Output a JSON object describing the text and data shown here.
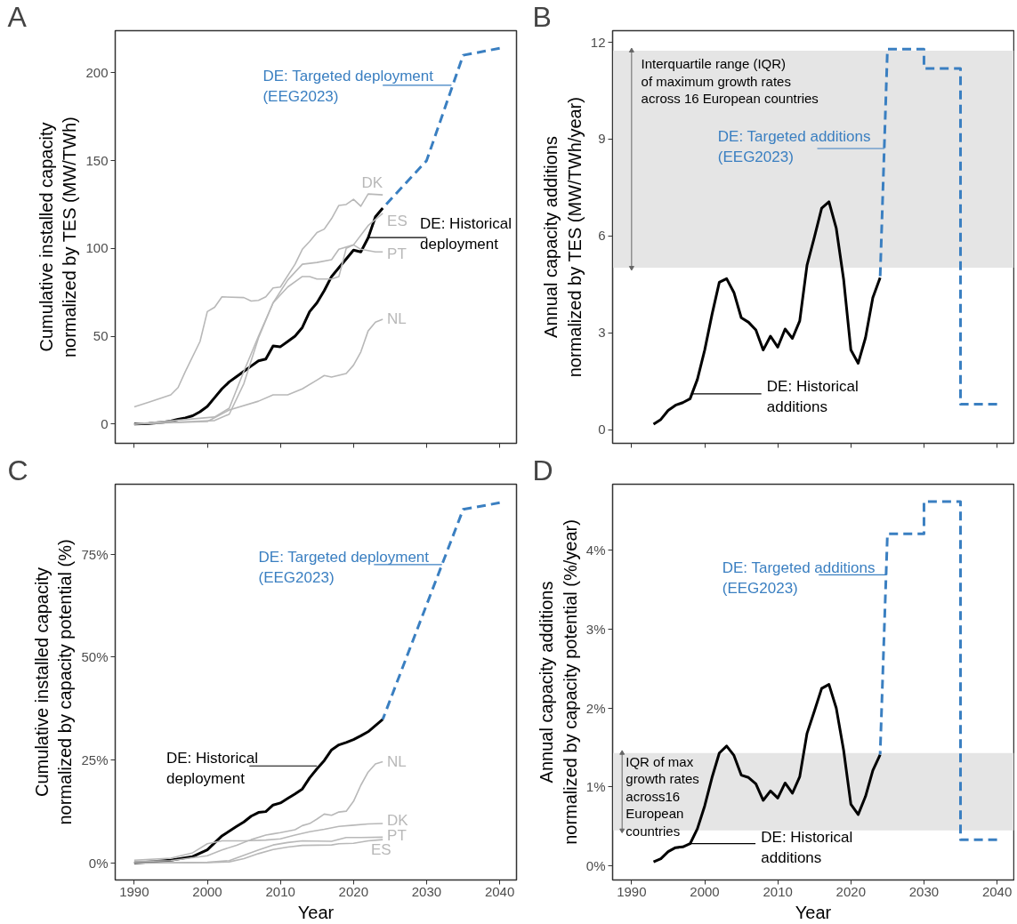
{
  "chart_data": [
    {
      "type": "line",
      "title": "A",
      "ylabel": "Cumulative installed capacity\nnormalized by TES (MW/TWh)",
      "xlim": [
        1987.4,
        2042.3
      ],
      "ylim": [
        -11,
        224
      ],
      "xticks": [
        1990,
        2000,
        2010,
        2020,
        2030,
        2040
      ],
      "yticks": [
        0,
        50,
        100,
        150,
        200
      ],
      "tick_labels": "y",
      "series": [
        {
          "name": "DE: Historical\ndeployment",
          "color": "#000000",
          "x": [
            1990,
            1991,
            1992,
            1993,
            1994,
            1995,
            1996,
            1997,
            1998,
            1999,
            2000,
            2001,
            2002,
            2003,
            2004,
            2005,
            2006,
            2007,
            2008,
            2009,
            2010,
            2011,
            2012,
            2013,
            2014,
            2015,
            2016,
            2017,
            2018,
            2019,
            2020,
            2021,
            2022,
            2023,
            2024
          ],
          "values": [
            0,
            0.1,
            0.3,
            0.6,
            1,
            1.7,
            2.7,
            3.5,
            4.7,
            7,
            10,
            15,
            20,
            24,
            27,
            30,
            33,
            36,
            37,
            44.5,
            44,
            47,
            50,
            55,
            64,
            69,
            76,
            84,
            89,
            94,
            99,
            98,
            106,
            118,
            123
          ]
        },
        {
          "name": "DE: Targeted deployment\n(EEG2023)",
          "color": "#3a7fc1",
          "line_style": "dashed",
          "x": [
            2024,
            2030,
            2035,
            2040
          ],
          "values": [
            123,
            150,
            210,
            214
          ]
        },
        {
          "name": "DK",
          "color": "#b8b8b8",
          "x": [
            1990,
            1992,
            1995,
            1996,
            1997,
            1999,
            2000,
            2001,
            2002,
            2005,
            2006,
            2007,
            2008,
            2009,
            2010,
            2012,
            2013,
            2014,
            2015,
            2016,
            2017,
            2018,
            2019,
            2020,
            2021,
            2022,
            2024
          ],
          "values": [
            9.8,
            12.4,
            16.6,
            20.8,
            30,
            47,
            64,
            66.5,
            72.4,
            72,
            70,
            70.4,
            72.4,
            77.5,
            78,
            91,
            99.5,
            104,
            109,
            111,
            117,
            124.5,
            125,
            128,
            124,
            131,
            130.5
          ]
        },
        {
          "name": "ES",
          "color": "#b8b8b8",
          "x": [
            1990,
            2001,
            2003,
            2005,
            2007,
            2009,
            2011,
            2013,
            2015,
            2017,
            2018,
            2020,
            2022,
            2024
          ],
          "values": [
            0,
            2,
            5.6,
            23,
            49,
            69,
            82,
            91,
            92,
            93.6,
            99.5,
            102,
            113,
            120
          ]
        },
        {
          "name": "PT",
          "color": "#b8b8b8",
          "x": [
            1990,
            2001,
            2003,
            2005,
            2007,
            2009,
            2011,
            2013,
            2014,
            2015,
            2017,
            2018,
            2019,
            2020,
            2021,
            2023,
            2024
          ],
          "values": [
            0,
            4,
            9,
            30,
            50,
            69,
            78,
            84,
            84,
            82.6,
            82.6,
            84,
            100,
            102,
            99.5,
            98,
            98
          ]
        },
        {
          "name": "NL",
          "color": "#b8b8b8",
          "x": [
            1990,
            2000,
            2003,
            2007,
            2009,
            2011,
            2013,
            2015,
            2016,
            2017,
            2019,
            2020,
            2021,
            2022,
            2023,
            2024
          ],
          "values": [
            0,
            1.4,
            8,
            13,
            16.6,
            16.6,
            20,
            25,
            27.6,
            26.7,
            28.8,
            33.5,
            41,
            53,
            58,
            59.7
          ]
        }
      ]
    },
    {
      "type": "line",
      "title": "B",
      "ylabel": "Annual capacity additions\nnormalized by TES (MW/TWh/year)",
      "xlim": [
        1987.4,
        2042.3
      ],
      "ylim": [
        -0.42,
        12.36
      ],
      "xticks": [
        1990,
        2000,
        2010,
        2020,
        2030,
        2040
      ],
      "yticks": [
        0,
        3,
        6,
        9,
        12
      ],
      "tick_labels": "y",
      "bands": [
        {
          "axis": "y",
          "from": 5.02,
          "to": 11.74,
          "label": "Interquartile range (IQR)\nof maximum growth rates\nacross 16 European countries",
          "color": "#e5e5e5"
        }
      ],
      "series": [
        {
          "name": "DE: Historical\nadditions",
          "color": "#000000",
          "x": [
            1993,
            1994,
            1995,
            1996,
            1997,
            1998,
            1999,
            2000,
            2001,
            2002,
            2003,
            2004,
            2005,
            2006,
            2007,
            2008,
            2009,
            2010,
            2011,
            2012,
            2013,
            2014,
            2015,
            2016,
            2017,
            2018,
            2019,
            2020,
            2021,
            2022,
            2023,
            2024
          ],
          "values": [
            0.17,
            0.32,
            0.6,
            0.76,
            0.84,
            0.96,
            1.56,
            2.47,
            3.57,
            4.57,
            4.68,
            4.25,
            3.47,
            3.33,
            3.09,
            2.47,
            2.9,
            2.56,
            3.12,
            2.83,
            3.37,
            5.1,
            5.96,
            6.86,
            7.06,
            6.24,
            4.67,
            2.47,
            2.06,
            2.85,
            4.09,
            4.71
          ]
        },
        {
          "name": "DE: Targeted additions\n(EEG2023)",
          "color": "#3a7fc1",
          "line_style": "dashed",
          "x": [
            2024,
            2025,
            2030,
            2030,
            2035,
            2035,
            2040
          ],
          "values": [
            4.71,
            11.79,
            11.79,
            11.19,
            11.19,
            0.79,
            0.79
          ]
        }
      ]
    },
    {
      "type": "line",
      "title": "C",
      "xlabel": "Year",
      "ylabel": "Cumulative installed capacity\nnormalized by capacity potential (%)",
      "xlim": [
        1987.4,
        2042.3
      ],
      "ylim": [
        -4.1,
        92
      ],
      "xticks": [
        1990,
        2000,
        2010,
        2020,
        2030,
        2040
      ],
      "yticks": [
        {
          "value": 0,
          "label": "0%"
        },
        {
          "value": 25,
          "label": "25%"
        },
        {
          "value": 50,
          "label": "50%"
        },
        {
          "value": 75,
          "label": "75%"
        }
      ],
      "series": [
        {
          "name": "DE: Historical\ndeployment",
          "color": "#000000",
          "x": [
            1990,
            1995,
            1998,
            2000,
            2002,
            2004,
            2005,
            2006,
            2007,
            2008,
            2009,
            2010,
            2011,
            2012,
            2013,
            2014,
            2015,
            2016,
            2017,
            2018,
            2019,
            2020,
            2021,
            2022,
            2023,
            2024
          ],
          "values": [
            0,
            0.7,
            1.6,
            3.2,
            6.6,
            8.9,
            10,
            11.4,
            12.3,
            12.5,
            14.1,
            14.6,
            15.7,
            16.8,
            18,
            20.7,
            22.9,
            24.9,
            27.5,
            28.7,
            29.3,
            30,
            30.9,
            31.9,
            33.4,
            34.9
          ]
        },
        {
          "name": "DE: Targeted deployment\n(EEG2023)",
          "color": "#3a7fc1",
          "line_style": "dashed",
          "x": [
            2024,
            2035,
            2040
          ],
          "values": [
            34.9,
            85.9,
            87.5
          ]
        },
        {
          "name": "DK",
          "color": "#b8b8b8",
          "x": [
            1990,
            1995,
            1998,
            2000,
            2002,
            2005,
            2008,
            2010,
            2012,
            2014,
            2016,
            2018,
            2020,
            2022,
            2024
          ],
          "values": [
            0.7,
            1.2,
            2.5,
            4.7,
            5.4,
            5.4,
            5.6,
            5.9,
            6.8,
            7.6,
            8.2,
            8.9,
            9.2,
            9.5,
            9.6
          ]
        },
        {
          "name": "ES",
          "color": "#b8b8b8",
          "x": [
            1990,
            2000,
            2003,
            2005,
            2007,
            2009,
            2011,
            2013,
            2017,
            2018,
            2020,
            2022,
            2024
          ],
          "values": [
            0,
            0.1,
            0.3,
            1.1,
            2.3,
            3.3,
            3.9,
            4.3,
            4.4,
            4.7,
            4.8,
            5.4,
            5.7
          ]
        },
        {
          "name": "PT",
          "color": "#b8b8b8",
          "x": [
            1990,
            2000,
            2003,
            2005,
            2007,
            2009,
            2011,
            2013,
            2017,
            2019,
            2021,
            2024
          ],
          "values": [
            0,
            0.2,
            0.6,
            1.9,
            3.2,
            4.4,
            5,
            5.4,
            5.3,
            6.2,
            6.2,
            6.3
          ]
        },
        {
          "name": "NL",
          "color": "#b8b8b8",
          "x": [
            1990,
            1995,
            1998,
            2000,
            2002,
            2004,
            2006,
            2008,
            2009,
            2010,
            2012,
            2013,
            2014,
            2015,
            2016,
            2017,
            2018,
            2019,
            2020,
            2021,
            2022,
            2023,
            2024
          ],
          "values": [
            0.4,
            0.6,
            1.3,
            1.8,
            3.2,
            4.3,
            5.7,
            6.8,
            7.1,
            7.4,
            8.1,
            9.1,
            9.6,
            10.7,
            11.9,
            11.6,
            12.4,
            12.6,
            15,
            18.9,
            22.1,
            24.1,
            24.6
          ]
        }
      ]
    },
    {
      "type": "line",
      "title": "D",
      "xlabel": "Year",
      "ylabel": "Annual capacity additions\nnormalized by capacity potential (%/year)",
      "xlim": [
        1987.4,
        2042.3
      ],
      "ylim": [
        -0.18,
        4.84
      ],
      "xticks": [
        1990,
        2000,
        2010,
        2020,
        2030,
        2040
      ],
      "yticks": [
        {
          "value": 0,
          "label": "0%"
        },
        {
          "value": 1,
          "label": "1%"
        },
        {
          "value": 2,
          "label": "2%"
        },
        {
          "value": 3,
          "label": "3%"
        },
        {
          "value": 4,
          "label": "4%"
        }
      ],
      "bands": [
        {
          "axis": "y",
          "from": 0.45,
          "to": 1.43,
          "label": "IQR of max\ngrowth rates\nacross16\nEuropean\ncountries",
          "color": "#e5e5e5"
        }
      ],
      "series": [
        {
          "name": "DE: Historical\nadditions",
          "color": "#000000",
          "x": [
            1993,
            1994,
            1995,
            1996,
            1997,
            1998,
            1999,
            2000,
            2001,
            2002,
            2003,
            2004,
            2005,
            2006,
            2007,
            2008,
            2009,
            2010,
            2011,
            2012,
            2013,
            2014,
            2015,
            2016,
            2017,
            2018,
            2019,
            2020,
            2021,
            2022,
            2023,
            2024
          ],
          "values": [
            0.05,
            0.09,
            0.18,
            0.23,
            0.24,
            0.28,
            0.47,
            0.76,
            1.12,
            1.43,
            1.52,
            1.4,
            1.15,
            1.12,
            1.04,
            0.83,
            0.95,
            0.86,
            1.05,
            0.92,
            1.13,
            1.68,
            1.96,
            2.25,
            2.3,
            2.0,
            1.47,
            0.78,
            0.65,
            0.88,
            1.21,
            1.41
          ]
        },
        {
          "name": "DE: Targeted additions\n(EEG2023)",
          "color": "#3a7fc1",
          "line_style": "dashed",
          "x": [
            2024,
            2025,
            2030,
            2030,
            2035,
            2035,
            2040
          ],
          "values": [
            1.41,
            4.21,
            4.21,
            4.62,
            4.62,
            0.33,
            0.33
          ]
        }
      ]
    }
  ]
}
